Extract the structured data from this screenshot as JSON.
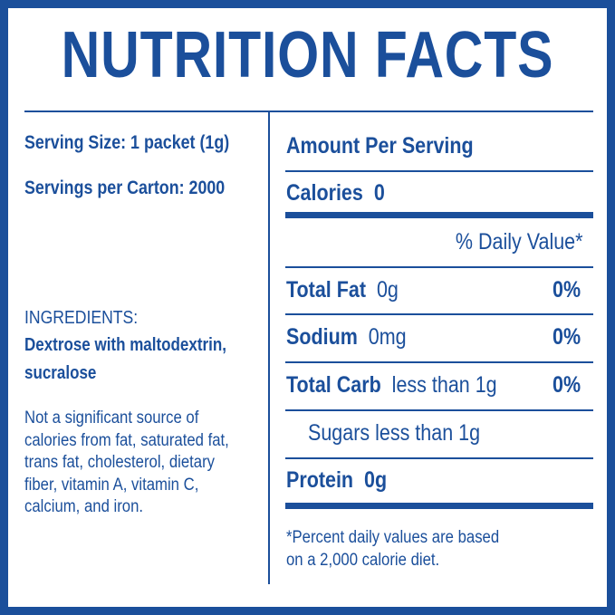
{
  "title": "NUTRITION FACTS",
  "left": {
    "serving_size": "Serving Size: 1 packet (1g)",
    "servings_per_carton": "Servings per Carton: 2000",
    "ingredients_heading": "INGREDIENTS:",
    "ingredients_line1": "Dextrose with maltodextrin,",
    "ingredients_line2": "sucralose",
    "note_lines": [
      "Not a significant source of",
      "calories from fat, saturated fat,",
      "trans fat, cholesterol, dietary",
      "fiber, vitamin A, vitamin C,",
      "calcium, and iron."
    ]
  },
  "right": {
    "amount_per_serving": "Amount Per Serving",
    "calories_label": "Calories",
    "calories_value": "0",
    "daily_value_header": "% Daily Value*",
    "rows": [
      {
        "label": "Total Fat",
        "amount": "0g",
        "dv": "0%"
      },
      {
        "label": "Sodium",
        "amount": "0mg",
        "dv": "0%"
      },
      {
        "label": "Total Carb",
        "amount": "less than 1g",
        "dv": "0%"
      }
    ],
    "sugars": "Sugars less than 1g",
    "protein_label": "Protein",
    "protein_value": "0g",
    "footnote_line1": "*Percent daily values are based",
    "footnote_line2": "on a 2,000 calorie diet."
  },
  "colors": {
    "brand_blue": "#1b4f9b",
    "background": "#ffffff"
  }
}
